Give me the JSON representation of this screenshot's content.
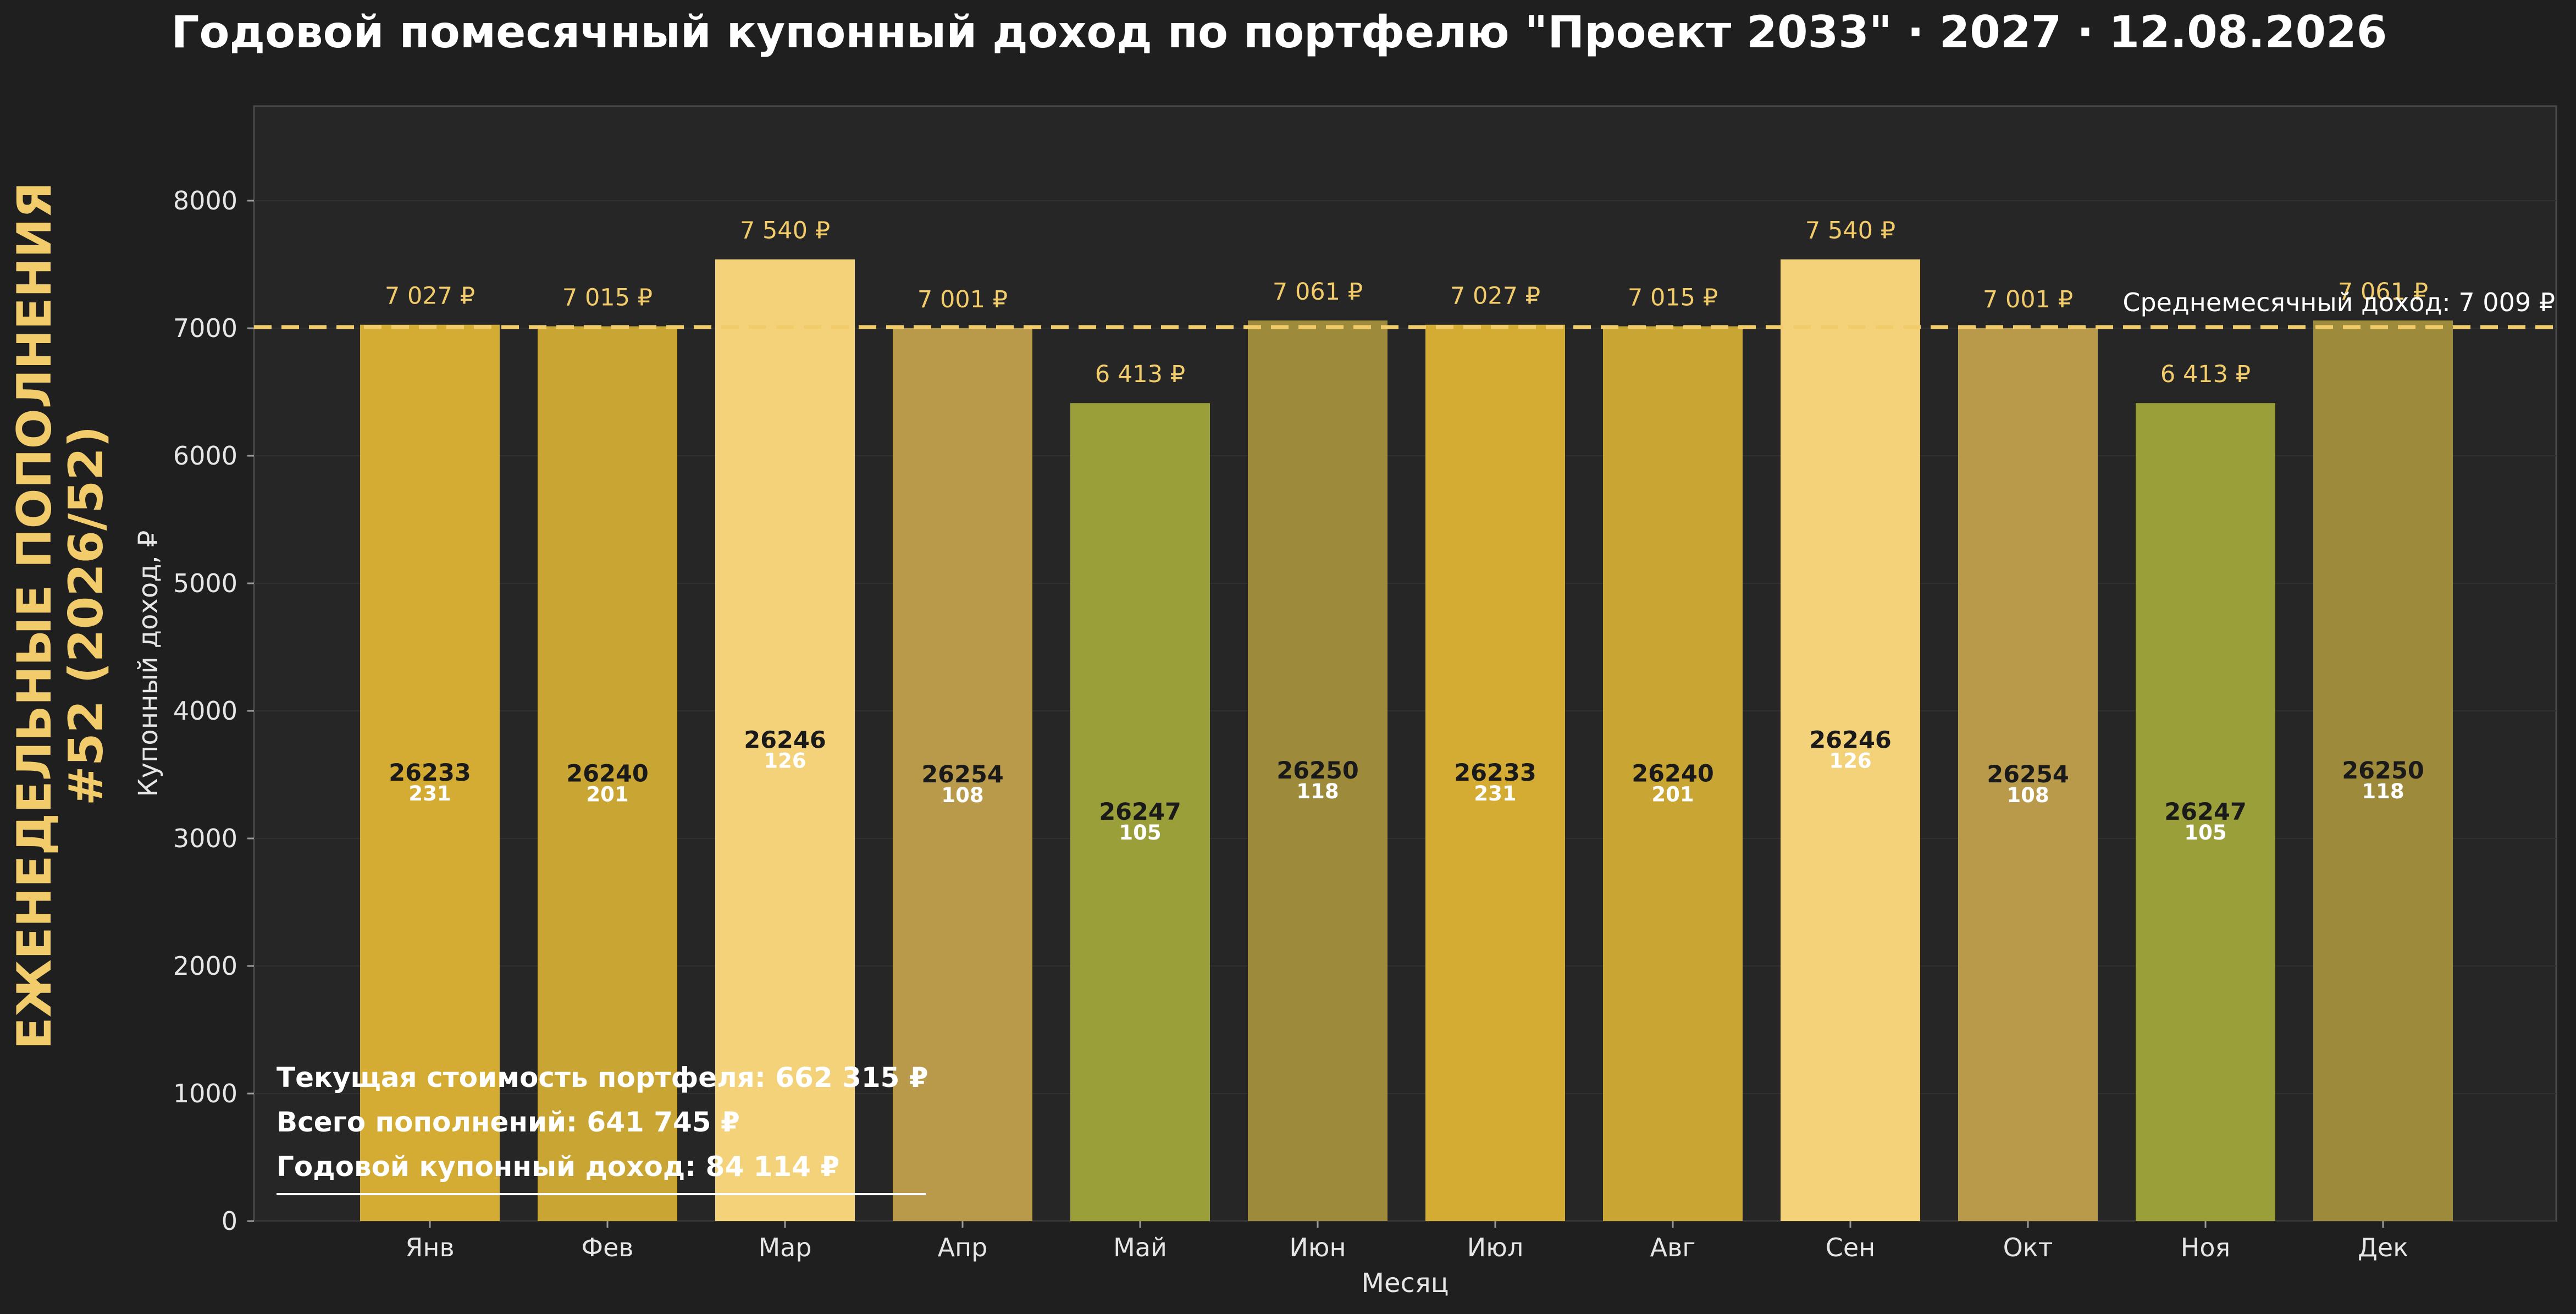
{
  "chart_data": {
    "type": "bar",
    "title": "Годовой помесячный купонный доход по портфелю \"Проект 2033\" · 2027 · 12.08.2026",
    "side_label": [
      "ЕЖЕНЕДЕЛЬНЫЕ ПОПОЛНЕНИЯ",
      "#52 (2026/52)"
    ],
    "xlabel": "Месяц",
    "ylabel": "Купонный доход, ₽",
    "ylim": [
      0,
      8800
    ],
    "yticks": [
      "0",
      "1000",
      "2000",
      "3000",
      "4000",
      "5000",
      "6000",
      "7000",
      "8000"
    ],
    "grid": "horizontal",
    "categories": [
      "Янв",
      "Фев",
      "Мар",
      "Апр",
      "Май",
      "Июн",
      "Июл",
      "Авг",
      "Сен",
      "Окт",
      "Ноя",
      "Дек"
    ],
    "values": [
      7027,
      7015,
      7540,
      7001,
      6413,
      7061,
      7027,
      7015,
      7540,
      7001,
      6413,
      7061
    ],
    "value_labels": [
      "7 027 ₽",
      "7 015 ₽",
      "7 540 ₽",
      "7 001 ₽",
      "6 413 ₽",
      "7 061 ₽",
      "7 027 ₽",
      "7 015 ₽",
      "7 540 ₽",
      "7 001 ₽",
      "6 413 ₽",
      "7 061 ₽"
    ],
    "bond_codes": [
      "26233",
      "26240",
      "26246",
      "26254",
      "26247",
      "26250",
      "26233",
      "26240",
      "26246",
      "26254",
      "26247",
      "26250"
    ],
    "bond_counts": [
      "231",
      "201",
      "126",
      "108",
      "105",
      "118",
      "231",
      "201",
      "126",
      "108",
      "105",
      "118"
    ],
    "bar_colors": [
      "#d4ac33",
      "#c9a633",
      "#f3d27a",
      "#b99a4a",
      "#9a9f3a",
      "#9d8a3b",
      "#d4ac33",
      "#c9a633",
      "#f3d27a",
      "#b99a4a",
      "#9a9f3a",
      "#9d8a3b"
    ],
    "average": {
      "value": 7009,
      "label": "Среднемесячный доход: 7 009 ₽",
      "color": "#f2cc6b"
    },
    "summary": [
      "Текущая стоимость портфеля: 662 315 ₽",
      "Всего пополнений: 641 745 ₽",
      "Годовой купонный доход: 84 114 ₽"
    ],
    "colors": {
      "background": "#1f1f1f",
      "plot_background": "#262626",
      "accent": "#f2cc6b",
      "text": "#ffffff",
      "tick_text": "#e6e6e6",
      "bar_text": "#1a1a1a"
    }
  }
}
